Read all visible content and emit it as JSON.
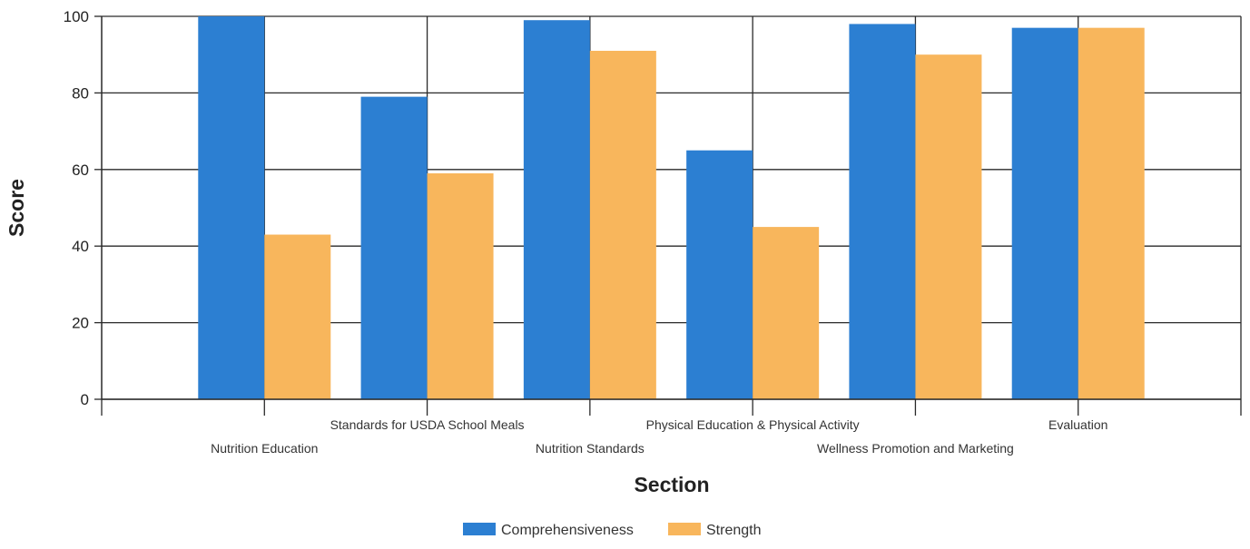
{
  "chart_data": {
    "type": "bar",
    "xlabel": "Section",
    "ylabel": "Score",
    "ylim": [
      0,
      100
    ],
    "yticks": [
      0,
      20,
      40,
      60,
      80,
      100
    ],
    "grid": true,
    "legend_position": "bottom",
    "categories": [
      "Nutrition Education",
      "Standards for USDA School Meals",
      "Nutrition Standards",
      "Physical Education & Physical Activity",
      "Wellness Promotion and Marketing",
      "Evaluation"
    ],
    "series": [
      {
        "name": "Comprehensiveness",
        "color": "#2c7fd2",
        "values": [
          100,
          79,
          99,
          65,
          98,
          97
        ]
      },
      {
        "name": "Strength",
        "color": "#f8b65c",
        "values": [
          43,
          59,
          91,
          45,
          90,
          97
        ]
      }
    ]
  }
}
